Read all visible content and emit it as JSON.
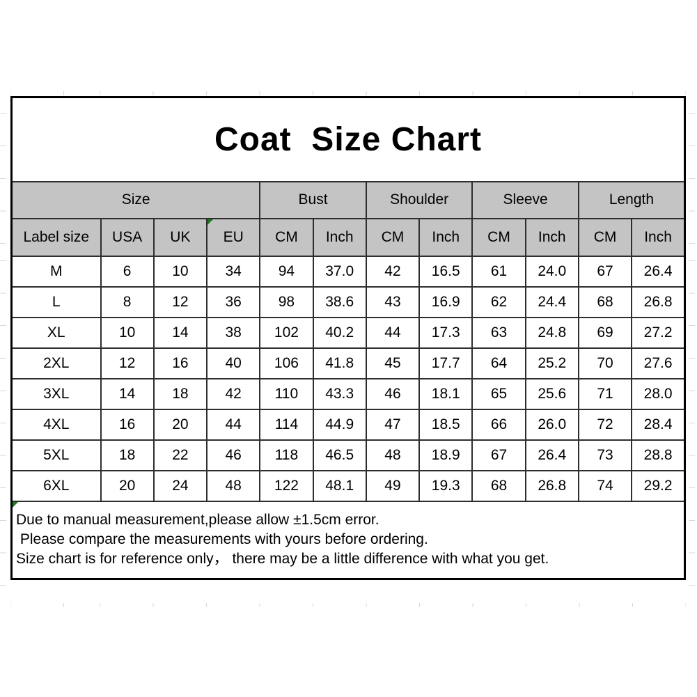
{
  "chart_data": {
    "type": "table",
    "title": "Coat  Size Chart",
    "group_headers": [
      {
        "label": "Size",
        "span": 4
      },
      {
        "label": "Bust",
        "span": 2
      },
      {
        "label": "Shoulder",
        "span": 2
      },
      {
        "label": "Sleeve",
        "span": 2
      },
      {
        "label": "Length",
        "span": 2
      }
    ],
    "column_headers": [
      "Label size",
      "USA",
      "UK",
      "EU",
      "CM",
      "Inch",
      "CM",
      "Inch",
      "CM",
      "Inch",
      "CM",
      "Inch"
    ],
    "rows": [
      [
        "M",
        "6",
        "10",
        "34",
        "94",
        "37.0",
        "42",
        "16.5",
        "61",
        "24.0",
        "67",
        "26.4"
      ],
      [
        "L",
        "8",
        "12",
        "36",
        "98",
        "38.6",
        "43",
        "16.9",
        "62",
        "24.4",
        "68",
        "26.8"
      ],
      [
        "XL",
        "10",
        "14",
        "38",
        "102",
        "40.2",
        "44",
        "17.3",
        "63",
        "24.8",
        "69",
        "27.2"
      ],
      [
        "2XL",
        "12",
        "16",
        "40",
        "106",
        "41.8",
        "45",
        "17.7",
        "64",
        "25.2",
        "70",
        "27.6"
      ],
      [
        "3XL",
        "14",
        "18",
        "42",
        "110",
        "43.3",
        "46",
        "18.1",
        "65",
        "25.6",
        "71",
        "28.0"
      ],
      [
        "4XL",
        "16",
        "20",
        "44",
        "114",
        "44.9",
        "47",
        "18.5",
        "66",
        "26.0",
        "72",
        "28.4"
      ],
      [
        "5XL",
        "18",
        "22",
        "46",
        "118",
        "46.5",
        "48",
        "18.9",
        "67",
        "26.4",
        "73",
        "28.8"
      ],
      [
        "6XL",
        "20",
        "24",
        "48",
        "122",
        "48.1",
        "49",
        "19.3",
        "68",
        "26.8",
        "74",
        "29.2"
      ]
    ],
    "notes": [
      "Due to manual measurement,please allow ±1.5cm error.",
      " Please compare the measurements with yours before ordering.",
      "Size chart is for reference only， there may be a little difference with what you get."
    ]
  },
  "colors": {
    "header_bg": "#c4c4c4",
    "grid_line": "#2e2e2e",
    "outer_border": "#000000",
    "marker_green": "#217a21"
  }
}
